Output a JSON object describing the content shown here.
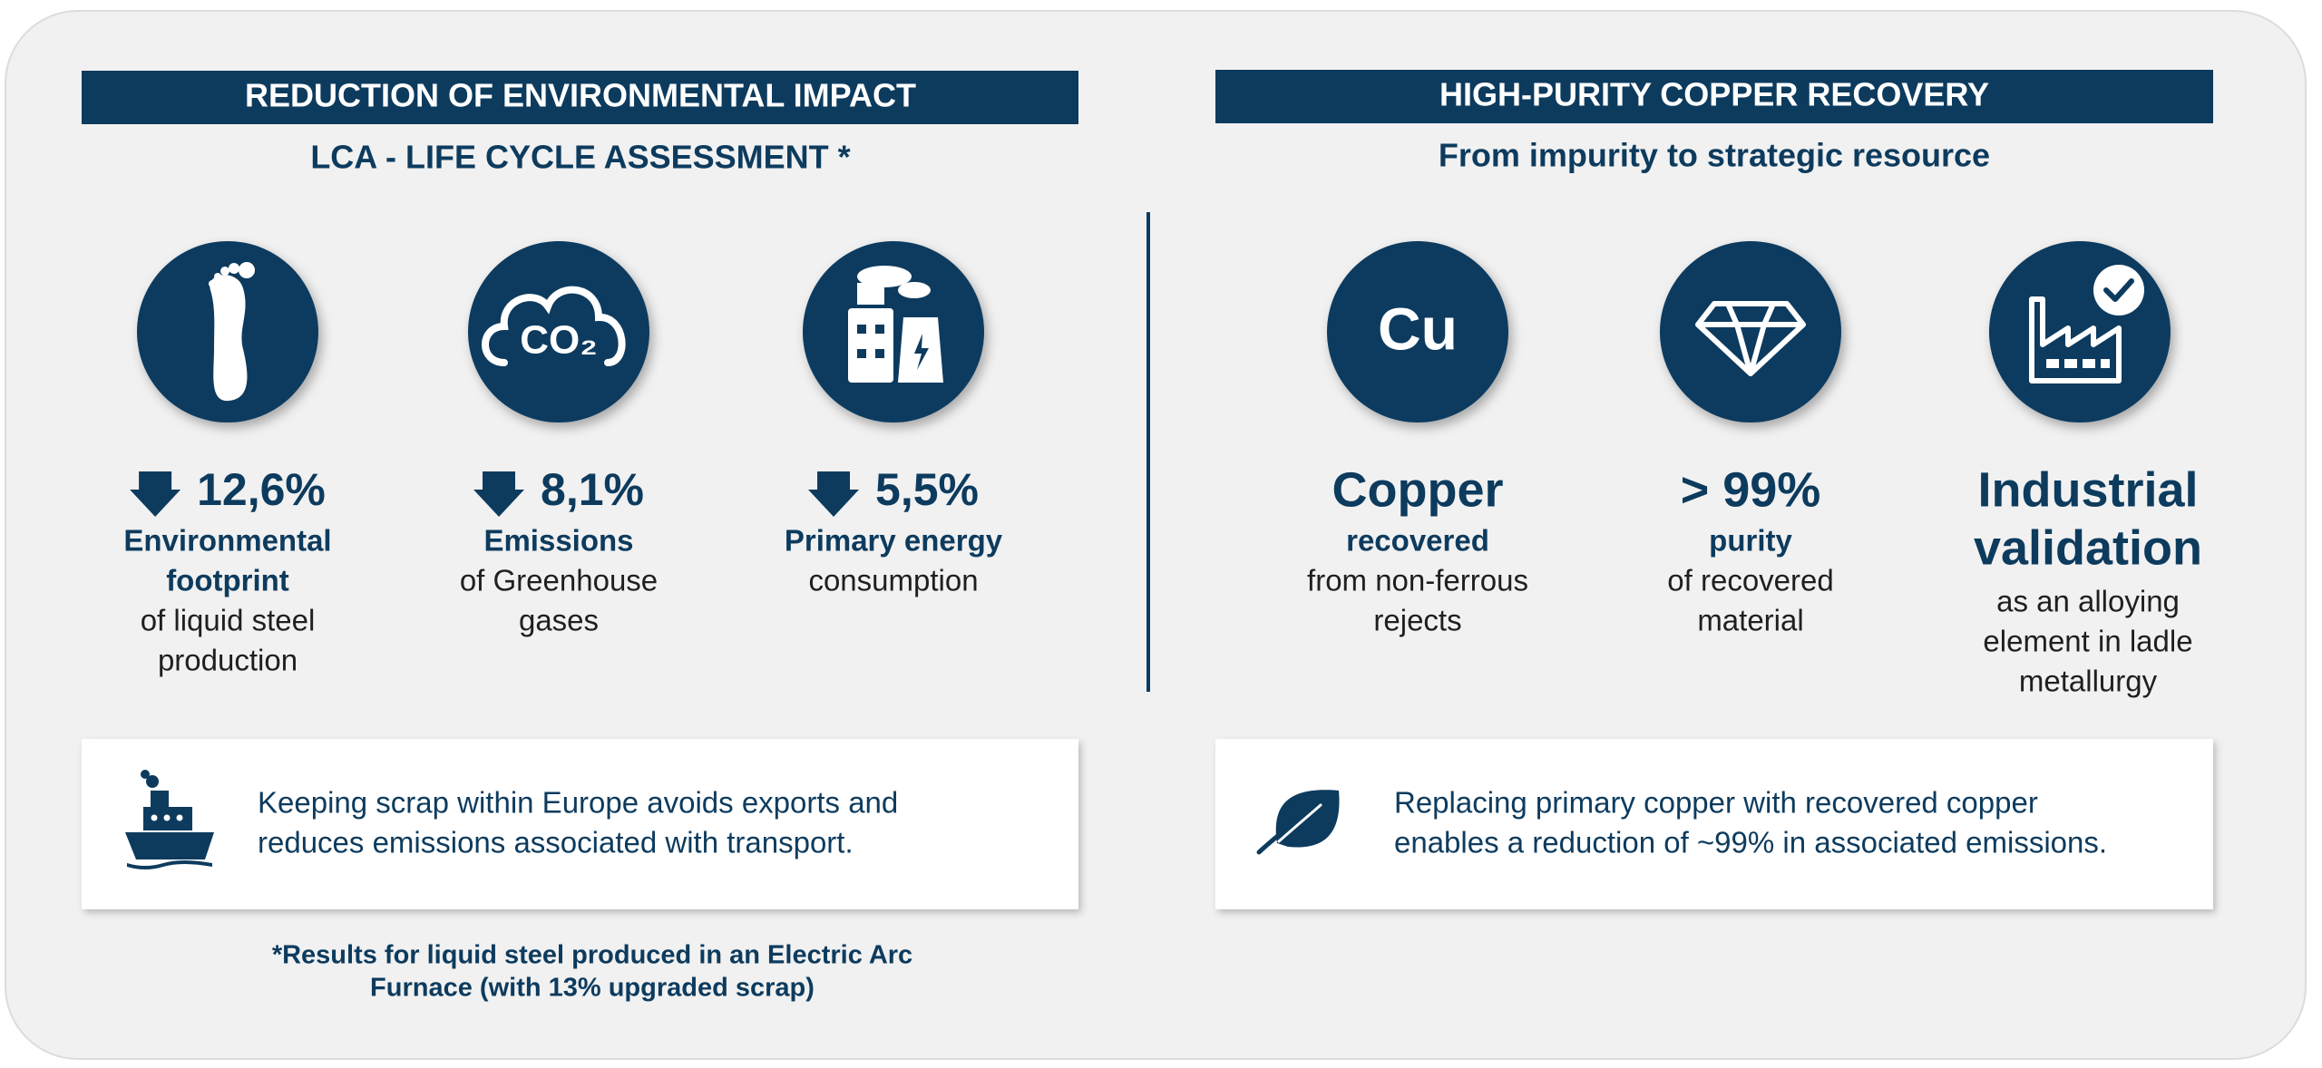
{
  "left_panel": {
    "header": "REDUCTION OF ENVIRONMENTAL IMPACT",
    "subtitle": "LCA - LIFE CYCLE ASSESSMENT *",
    "stats": [
      {
        "value": "12,6%",
        "label": [
          "Environmental",
          "footprint"
        ],
        "description": [
          "of liquid steel",
          "production"
        ]
      },
      {
        "icon_label": "CO₂",
        "value": "8,1%",
        "label": [
          "Emissions"
        ],
        "description": [
          "of Greenhouse",
          "gases"
        ]
      },
      {
        "value": "5,5%",
        "label": [
          "Primary energy"
        ],
        "description": [
          "consumption"
        ]
      }
    ],
    "note": [
      "Keeping scrap within Europe avoids exports and",
      "reduces emissions associated with transport."
    ],
    "footnote": [
      "*Results for liquid steel produced in an Electric Arc",
      "Furnace (with 13% upgraded scrap)"
    ]
  },
  "right_panel": {
    "header": "HIGH-PURITY COPPER RECOVERY",
    "subtitle": "From impurity to strategic resource",
    "stats": [
      {
        "icon_label": "Cu",
        "headline": [
          "Copper"
        ],
        "label": [
          "recovered"
        ],
        "description": [
          "from non-ferrous",
          "rejects"
        ]
      },
      {
        "headline": [
          "> 99%"
        ],
        "label": [
          "purity"
        ],
        "description": [
          "of recovered",
          "material"
        ]
      },
      {
        "headline": [
          "Industrial",
          "validation"
        ],
        "description": [
          "as an alloying",
          "element in ladle",
          "metallurgy"
        ]
      }
    ],
    "note": [
      "Replacing primary copper with recovered copper",
      "enables a reduction of ~99% in associated emissions."
    ]
  }
}
